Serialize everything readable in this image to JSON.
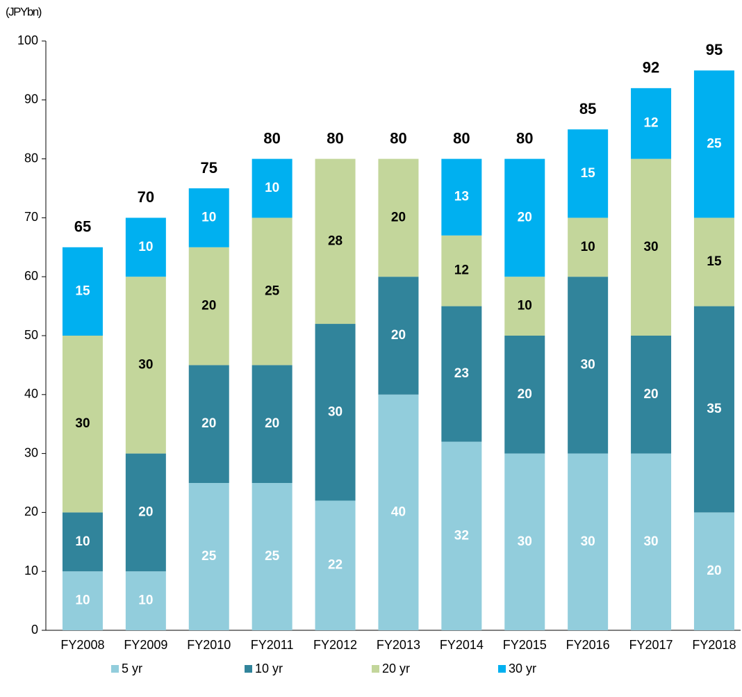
{
  "chart_data": {
    "type": "stacked_bar",
    "y_axis_label": "(JPYbn)",
    "categories": [
      "FY2008",
      "FY2009",
      "FY2010",
      "FY2011",
      "FY2012",
      "FY2013",
      "FY2014",
      "FY2015",
      "FY2016",
      "FY2017",
      "FY2018"
    ],
    "series": [
      {
        "name": "5 yr",
        "color": "#92cddc",
        "label_color": "#ffffff",
        "values": [
          10,
          10,
          25,
          25,
          22,
          40,
          32,
          30,
          30,
          30,
          20
        ]
      },
      {
        "name": "10 yr",
        "color": "#31849b",
        "label_color": "#ffffff",
        "values": [
          10,
          20,
          20,
          20,
          30,
          20,
          23,
          20,
          30,
          20,
          35
        ]
      },
      {
        "name": "20 yr",
        "color": "#c3d69b",
        "label_color": "#000000",
        "values": [
          30,
          30,
          20,
          25,
          28,
          20,
          12,
          10,
          10,
          30,
          15
        ]
      },
      {
        "name": "30 yr",
        "color": "#00b0f0",
        "label_color": "#ffffff",
        "values": [
          15,
          10,
          10,
          10,
          null,
          null,
          13,
          20,
          15,
          12,
          25
        ]
      }
    ],
    "totals": [
      65,
      70,
      75,
      80,
      80,
      80,
      80,
      80,
      85,
      92,
      95
    ],
    "ylim": [
      0,
      100
    ],
    "yticks": [
      0,
      10,
      20,
      30,
      40,
      50,
      60,
      70,
      80,
      90,
      100
    ],
    "legend": "bottom"
  }
}
